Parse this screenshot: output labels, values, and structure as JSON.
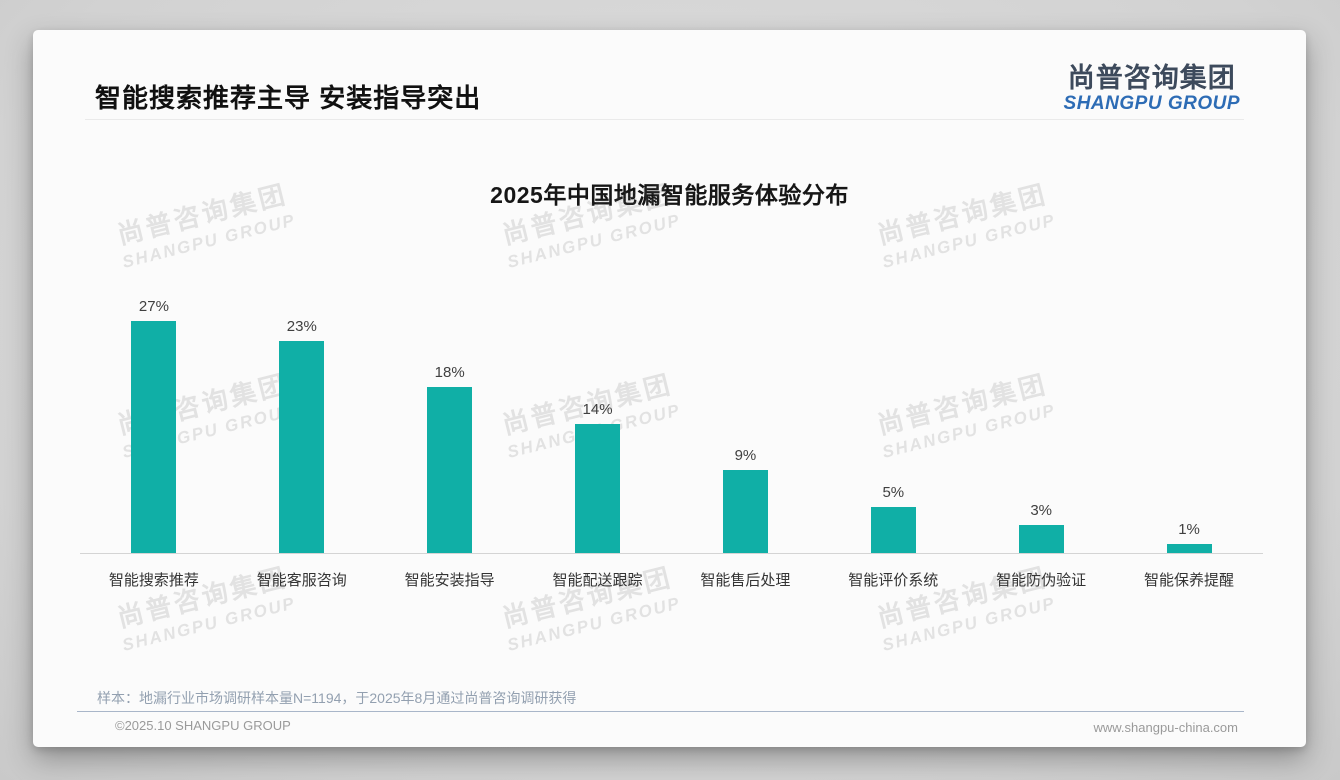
{
  "page": {
    "title": "智能搜索推荐主导 安装指导突出",
    "logo": {
      "cn": "尚普咨询集团",
      "en": "SHANGPU GROUP"
    },
    "watermark": {
      "cn": "尚普咨询集团",
      "en": "SHANGPU GROUP"
    },
    "note": "样本：地漏行业市场调研样本量N=1194，于2025年8月通过尚普咨询调研获得",
    "footer_left": "©2025.10 SHANGPU GROUP",
    "footer_right": "www.shangpu-china.com"
  },
  "colors": {
    "bar": "#10afa6",
    "logo_cn": "#3d4a5c",
    "logo_en": "#2d6cb5",
    "note_text": "#93a0b0"
  },
  "chart_data": {
    "type": "bar",
    "title": "2025年中国地漏智能服务体验分布",
    "categories": [
      "智能搜索推荐",
      "智能客服咨询",
      "智能安装指导",
      "智能配送跟踪",
      "智能售后处理",
      "智能评价系统",
      "智能防伪验证",
      "智能保养提醒"
    ],
    "values": [
      27,
      23,
      18,
      14,
      9,
      5,
      3,
      1
    ],
    "unit": "%",
    "value_labels": [
      "27%",
      "23%",
      "18%",
      "14%",
      "9%",
      "5%",
      "3%",
      "1%"
    ],
    "xlabel": "",
    "ylabel": "",
    "ylim": [
      0,
      28
    ],
    "grid": false,
    "legend": false,
    "bar_color": "#10afa6"
  }
}
